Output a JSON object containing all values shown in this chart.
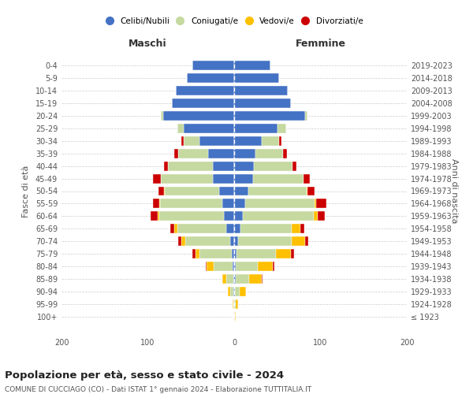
{
  "age_groups": [
    "100+",
    "95-99",
    "90-94",
    "85-89",
    "80-84",
    "75-79",
    "70-74",
    "65-69",
    "60-64",
    "55-59",
    "50-54",
    "45-49",
    "40-44",
    "35-39",
    "30-34",
    "25-29",
    "20-24",
    "15-19",
    "10-14",
    "5-9",
    "0-4"
  ],
  "birth_years": [
    "≤ 1923",
    "1924-1928",
    "1929-1933",
    "1934-1938",
    "1939-1943",
    "1944-1948",
    "1949-1953",
    "1954-1958",
    "1959-1963",
    "1964-1968",
    "1969-1973",
    "1974-1978",
    "1979-1983",
    "1984-1988",
    "1989-1993",
    "1994-1998",
    "1999-2003",
    "2004-2008",
    "2009-2013",
    "2014-2018",
    "2019-2023"
  ],
  "colors": {
    "celibi": "#4472c4",
    "coniugati": "#c5d9a0",
    "vedovi": "#ffc000",
    "divorziati": "#cc0000"
  },
  "maschi": {
    "celibi": [
      0,
      0,
      1,
      1,
      2,
      3,
      5,
      9,
      12,
      14,
      17,
      25,
      25,
      30,
      40,
      58,
      82,
      72,
      68,
      55,
      48
    ],
    "coniugati": [
      0,
      1,
      4,
      8,
      22,
      37,
      52,
      57,
      75,
      72,
      63,
      60,
      52,
      35,
      18,
      8,
      3,
      0,
      0,
      0,
      0
    ],
    "vedovi": [
      0,
      1,
      2,
      5,
      8,
      5,
      4,
      3,
      2,
      1,
      1,
      0,
      0,
      0,
      0,
      0,
      0,
      0,
      0,
      0,
      0
    ],
    "divorziati": [
      0,
      0,
      0,
      0,
      1,
      3,
      4,
      5,
      8,
      7,
      7,
      9,
      4,
      4,
      3,
      0,
      0,
      0,
      0,
      0,
      0
    ]
  },
  "femmine": {
    "celibi": [
      0,
      0,
      1,
      2,
      2,
      3,
      5,
      7,
      10,
      13,
      16,
      22,
      23,
      25,
      32,
      50,
      82,
      66,
      62,
      52,
      42
    ],
    "coniugati": [
      1,
      2,
      5,
      15,
      25,
      45,
      62,
      60,
      82,
      80,
      68,
      58,
      45,
      32,
      20,
      10,
      3,
      0,
      0,
      0,
      0
    ],
    "vedovi": [
      1,
      3,
      8,
      15,
      18,
      18,
      15,
      10,
      5,
      2,
      1,
      0,
      0,
      0,
      0,
      0,
      0,
      0,
      0,
      0,
      0
    ],
    "divorziati": [
      0,
      0,
      0,
      1,
      2,
      3,
      4,
      4,
      8,
      12,
      8,
      8,
      4,
      4,
      3,
      0,
      0,
      0,
      0,
      0,
      0
    ]
  },
  "title": "Popolazione per età, sesso e stato civile - 2024",
  "subtitle": "COMUNE DI CUCCIAGO (CO) - Dati ISTAT 1° gennaio 2024 - Elaborazione TUTTITALIA.IT",
  "xlabel_left": "Maschi",
  "xlabel_right": "Femmine",
  "ylabel_left": "Fasce di età",
  "ylabel_right": "Anni di nascita",
  "xlim": 200,
  "background_color": "#ffffff",
  "grid_color": "#cccccc",
  "legend_labels": [
    "Celibi/Nubili",
    "Coniugati/e",
    "Vedovi/e",
    "Divorziati/e"
  ]
}
